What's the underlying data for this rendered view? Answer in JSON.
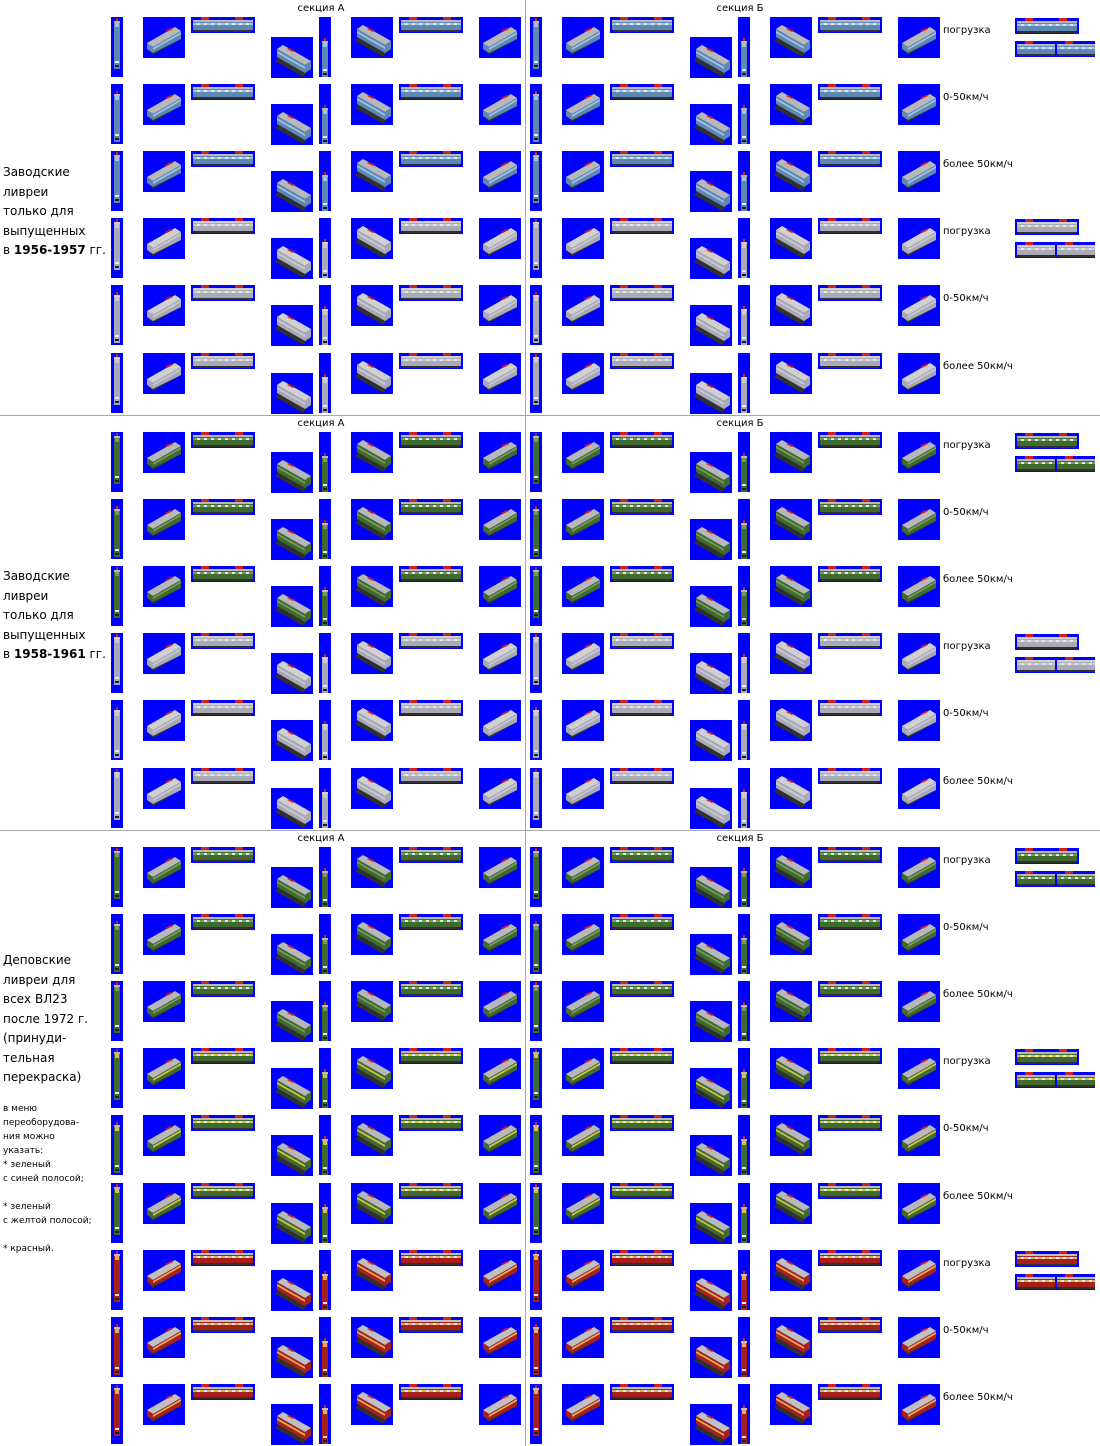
{
  "section_labels": {
    "a": "секция А",
    "b": "секция Б"
  },
  "groups": [
    {
      "text_lines": [
        "Заводские",
        "ливреи",
        "только для",
        "выпущенных"
      ],
      "years_prefix": "в ",
      "years": "1956-1957",
      "years_suffix": " гг.",
      "rows": [
        {
          "label": "погрузка",
          "livery": "blue"
        },
        {
          "label": "0-50км/ч",
          "livery": "blue"
        },
        {
          "label": "более 50км/ч",
          "livery": "blue"
        },
        {
          "label": "погрузка",
          "livery": "grey"
        },
        {
          "label": "0-50км/ч",
          "livery": "grey"
        },
        {
          "label": "более 50км/ч",
          "livery": "grey"
        }
      ]
    },
    {
      "text_lines": [
        "Заводские",
        "ливреи",
        "только для",
        "выпущенных"
      ],
      "years_prefix": "в ",
      "years": "1958-1961",
      "years_suffix": " гг.",
      "rows": [
        {
          "label": "погрузка",
          "livery": "green"
        },
        {
          "label": "0-50км/ч",
          "livery": "green"
        },
        {
          "label": "более 50км/ч",
          "livery": "green"
        },
        {
          "label": "погрузка",
          "livery": "grey"
        },
        {
          "label": "0-50км/ч",
          "livery": "grey"
        },
        {
          "label": "более 50км/ч",
          "livery": "grey"
        }
      ]
    },
    {
      "text_lines": [
        "Деповские",
        "ливреи для",
        "всех ВЛ23",
        "после 1972 г.",
        "(принуди-",
        "тельная",
        "перекраска)"
      ],
      "note_lines": [
        "в меню",
        "переоборудова-",
        "ния можно",
        "указать:",
        "* зеленый",
        "с синей полосой;",
        "",
        "* зеленый",
        "с желтой полосой;",
        "",
        "* красный."
      ],
      "rows": [
        {
          "label": "погрузка",
          "livery": "green"
        },
        {
          "label": "0-50км/ч",
          "livery": "green"
        },
        {
          "label": "более 50км/ч",
          "livery": "green"
        },
        {
          "label": "погрузка",
          "livery": "green_yellow"
        },
        {
          "label": "0-50км/ч",
          "livery": "green_yellow"
        },
        {
          "label": "более 50км/ч",
          "livery": "green_yellow"
        },
        {
          "label": "погрузка",
          "livery": "red"
        },
        {
          "label": "0-50км/ч",
          "livery": "red"
        },
        {
          "label": "более 50км/ч",
          "livery": "red"
        }
      ]
    }
  ],
  "liveries": {
    "blue": {
      "body": "#5f87b4",
      "stripe": "#9ec2e2",
      "roof": "#b8b8b8",
      "icon": "locomotive-blue-sprite"
    },
    "grey": {
      "body": "#a9aab6",
      "stripe": "#c8c8d0",
      "roof": "#d0d0d0",
      "icon": "locomotive-grey-sprite"
    },
    "green": {
      "body": "#3f6b2f",
      "stripe": "#7a9a5a",
      "roof": "#b8b8b8",
      "icon": "locomotive-green-sprite"
    },
    "green_yellow": {
      "body": "#3f6b2f",
      "stripe": "#d8c040",
      "roof": "#b8b8b8",
      "icon": "locomotive-green-yellow-sprite"
    },
    "red": {
      "body": "#a8201c",
      "stripe": "#e0b050",
      "roof": "#c0c0c0",
      "icon": "locomotive-red-sprite"
    }
  },
  "accents": {
    "sprite_background": "#0000ff",
    "pantograph_red": "#d02020",
    "separator": "#a8a8a8"
  }
}
